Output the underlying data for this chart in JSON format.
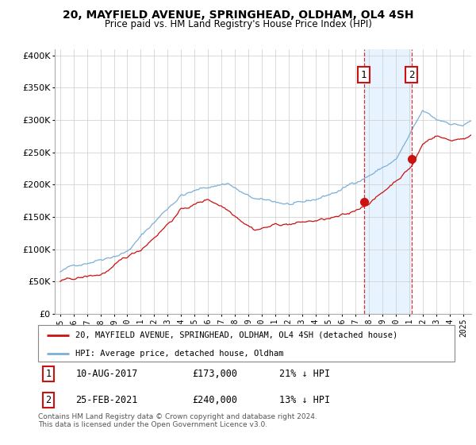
{
  "title1": "20, MAYFIELD AVENUE, SPRINGHEAD, OLDHAM, OL4 4SH",
  "title2": "Price paid vs. HM Land Registry's House Price Index (HPI)",
  "hpi_color": "#7ab0d8",
  "property_color": "#cc1111",
  "shade_color": "#ddeeff",
  "grid_color": "#cccccc",
  "background_color": "#ffffff",
  "event1_year_f": 2017.6,
  "event2_year_f": 2021.15,
  "event1_price": 173000,
  "event2_price": 240000,
  "event1_label": "1",
  "event2_label": "2",
  "event1_date": "10-AUG-2017",
  "event2_date": "25-FEB-2021",
  "event1_hpi_diff": "21% ↓ HPI",
  "event2_hpi_diff": "13% ↓ HPI",
  "event1_price_str": "£173,000",
  "event2_price_str": "£240,000",
  "ylim": [
    0,
    410000
  ],
  "yticks": [
    0,
    50000,
    100000,
    150000,
    200000,
    250000,
    300000,
    350000,
    400000
  ],
  "ytick_labels": [
    "£0",
    "£50K",
    "£100K",
    "£150K",
    "£200K",
    "£250K",
    "£300K",
    "£350K",
    "£400K"
  ],
  "footer": "Contains HM Land Registry data © Crown copyright and database right 2024.\nThis data is licensed under the Open Government Licence v3.0.",
  "legend_line1": "20, MAYFIELD AVENUE, SPRINGHEAD, OLDHAM, OL4 4SH (detached house)",
  "legend_line2": "HPI: Average price, detached house, Oldham"
}
